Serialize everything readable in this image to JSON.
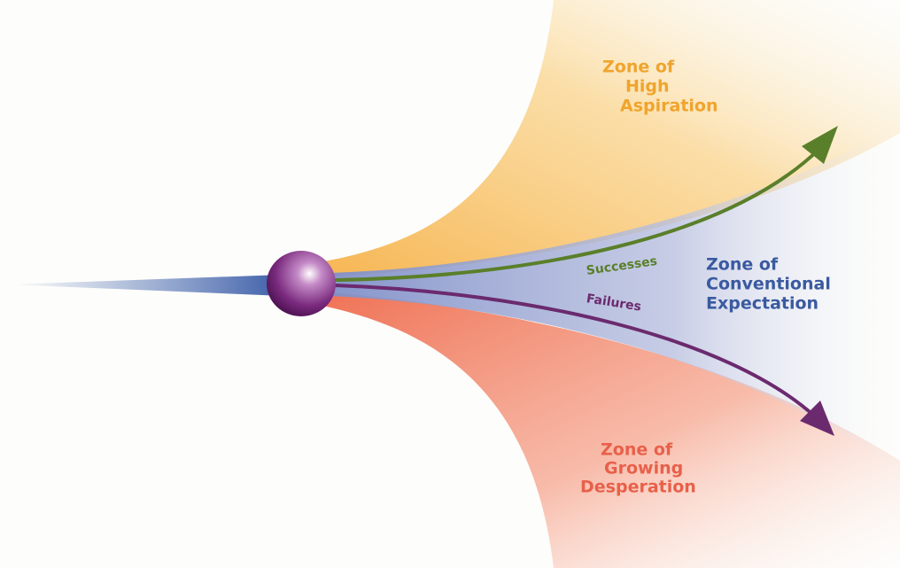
{
  "zones": [
    {
      "lines": [
        "Zone of",
        "High",
        "Aspiration"
      ]
    },
    {
      "lines": [
        "Zone of",
        "Conventional",
        "Expectation"
      ]
    },
    {
      "lines": [
        "Zone of",
        "Growing",
        "Desperation"
      ]
    }
  ],
  "arrows": [
    {
      "label": "Successes"
    },
    {
      "label": "Failures"
    }
  ]
}
